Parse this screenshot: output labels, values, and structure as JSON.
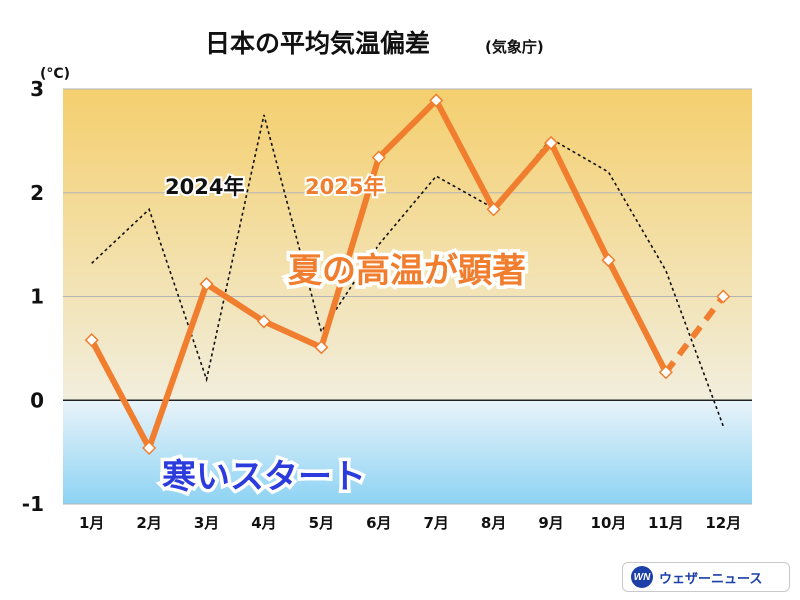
{
  "chart_data": {
    "type": "line",
    "title": "日本の平均気温偏差",
    "subtitle": "(気象庁)",
    "ylabel": "(°C)",
    "ylim": [
      -1,
      3
    ],
    "yticks": [
      "3",
      "2",
      "1",
      "0",
      "-1"
    ],
    "categories": [
      "1月",
      "2月",
      "3月",
      "4月",
      "5月",
      "6月",
      "7月",
      "8月",
      "9月",
      "10月",
      "11月",
      "12月"
    ],
    "series": [
      {
        "name": "2024年",
        "values": [
          1.32,
          1.84,
          0.2,
          2.75,
          0.66,
          1.5,
          2.16,
          1.85,
          2.52,
          2.2,
          1.25,
          -0.25
        ],
        "color": "#111111",
        "style": "dotted"
      },
      {
        "name": "2025年",
        "values": [
          0.58,
          -0.46,
          1.12,
          0.76,
          0.51,
          2.34,
          2.89,
          1.84,
          2.48,
          1.35,
          0.27,
          1.0
        ],
        "color": "#f07e2e",
        "style": "solid",
        "last_segment_dashed": true
      }
    ],
    "annotations": {
      "summer": "夏の高温が顕著",
      "start": "寒いスタート"
    }
  },
  "logo": {
    "mark": "WN",
    "text": "ウェザーニュース"
  }
}
